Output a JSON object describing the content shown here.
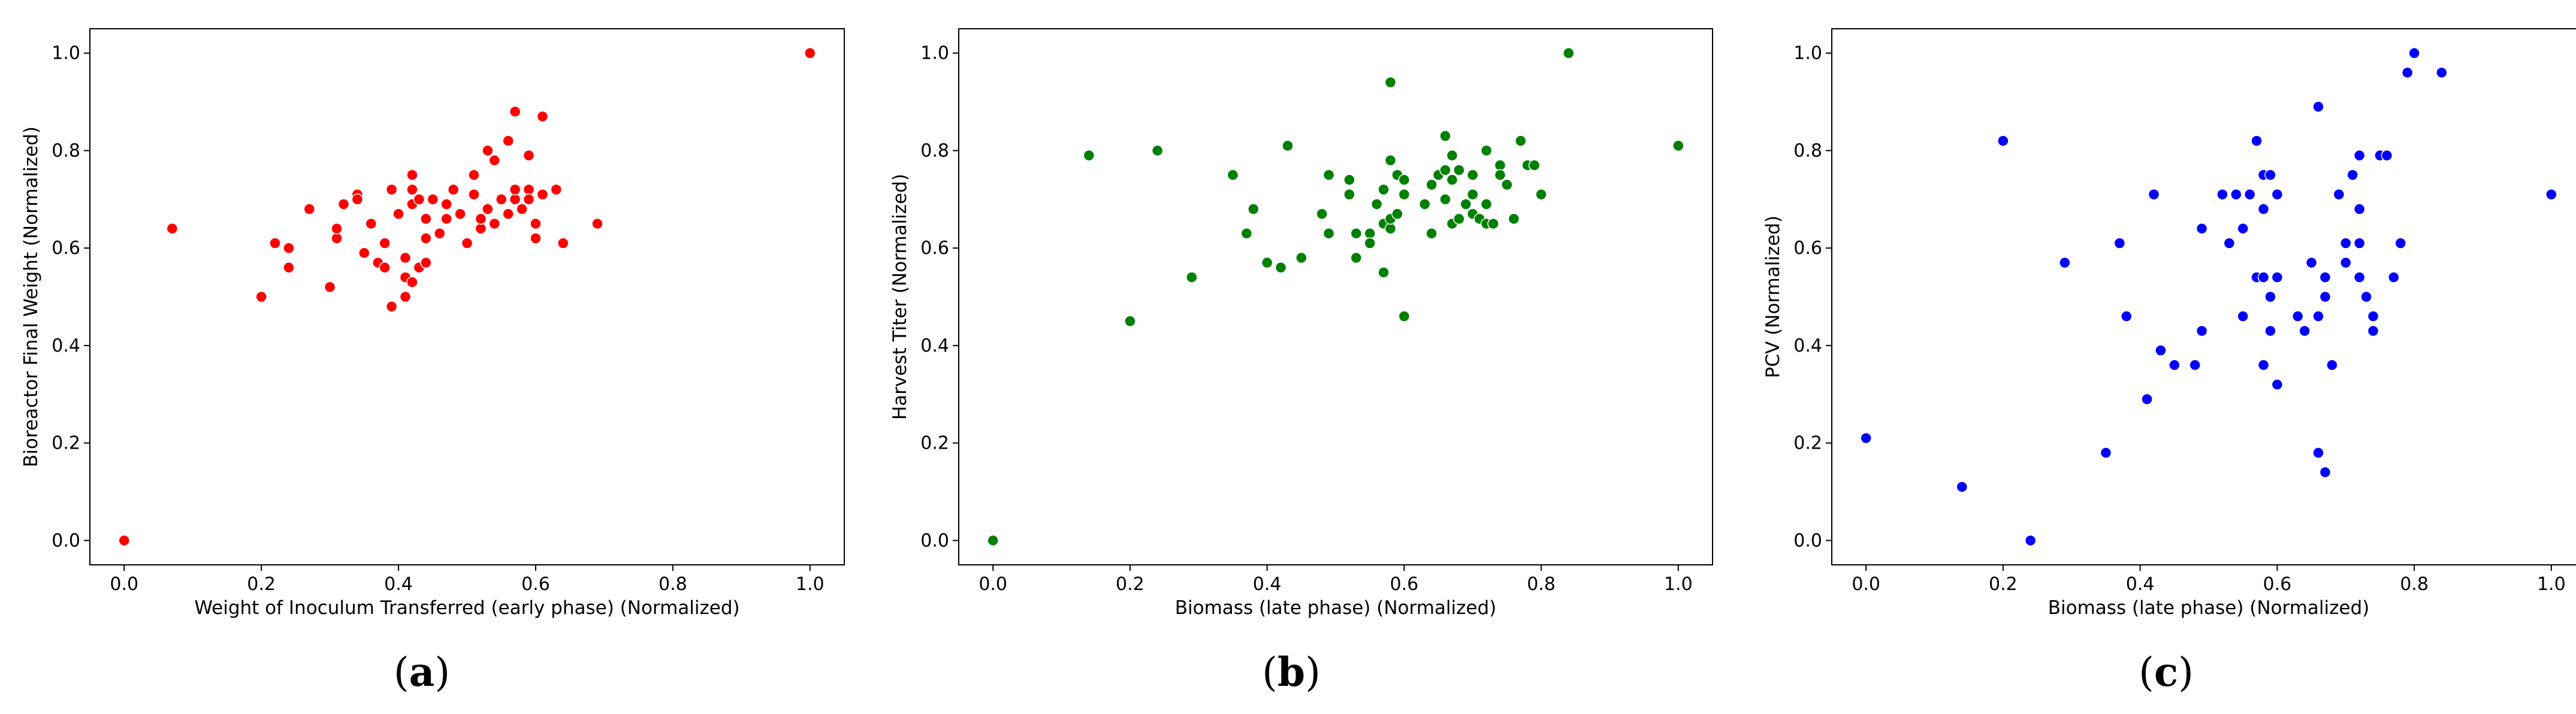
{
  "chart_data": [
    {
      "type": "scatter",
      "panel_label": "a",
      "xlabel": "Weight of Inoculum Transferred (early phase) (Normalized)",
      "ylabel": "Bioreactor Final Weight (Normalized)",
      "xlim": [
        -0.05,
        1.05
      ],
      "ylim": [
        -0.05,
        1.05
      ],
      "xticks": [
        "0.0",
        "0.2",
        "0.4",
        "0.6",
        "0.8",
        "1.0"
      ],
      "yticks": [
        "0.0",
        "0.2",
        "0.4",
        "0.6",
        "0.8",
        "1.0"
      ],
      "grid": false,
      "color": "#ff0000",
      "points": [
        [
          0.0,
          0.0
        ],
        [
          0.07,
          0.64
        ],
        [
          0.2,
          0.5
        ],
        [
          0.22,
          0.61
        ],
        [
          0.24,
          0.6
        ],
        [
          0.24,
          0.56
        ],
        [
          0.27,
          0.68
        ],
        [
          0.3,
          0.52
        ],
        [
          0.31,
          0.62
        ],
        [
          0.31,
          0.64
        ],
        [
          0.32,
          0.69
        ],
        [
          0.34,
          0.71
        ],
        [
          0.34,
          0.7
        ],
        [
          0.35,
          0.59
        ],
        [
          0.36,
          0.65
        ],
        [
          0.37,
          0.57
        ],
        [
          0.38,
          0.61
        ],
        [
          0.38,
          0.56
        ],
        [
          0.39,
          0.48
        ],
        [
          0.39,
          0.72
        ],
        [
          0.4,
          0.67
        ],
        [
          0.41,
          0.54
        ],
        [
          0.41,
          0.5
        ],
        [
          0.41,
          0.58
        ],
        [
          0.42,
          0.69
        ],
        [
          0.42,
          0.75
        ],
        [
          0.42,
          0.72
        ],
        [
          0.42,
          0.53
        ],
        [
          0.43,
          0.7
        ],
        [
          0.43,
          0.56
        ],
        [
          0.44,
          0.57
        ],
        [
          0.44,
          0.62
        ],
        [
          0.44,
          0.66
        ],
        [
          0.45,
          0.7
        ],
        [
          0.46,
          0.63
        ],
        [
          0.47,
          0.69
        ],
        [
          0.47,
          0.66
        ],
        [
          0.48,
          0.72
        ],
        [
          0.49,
          0.67
        ],
        [
          0.5,
          0.61
        ],
        [
          0.51,
          0.71
        ],
        [
          0.51,
          0.75
        ],
        [
          0.52,
          0.64
        ],
        [
          0.52,
          0.66
        ],
        [
          0.53,
          0.68
        ],
        [
          0.53,
          0.8
        ],
        [
          0.54,
          0.78
        ],
        [
          0.54,
          0.65
        ],
        [
          0.55,
          0.7
        ],
        [
          0.56,
          0.82
        ],
        [
          0.56,
          0.67
        ],
        [
          0.57,
          0.88
        ],
        [
          0.57,
          0.7
        ],
        [
          0.57,
          0.72
        ],
        [
          0.58,
          0.68
        ],
        [
          0.59,
          0.72
        ],
        [
          0.59,
          0.79
        ],
        [
          0.59,
          0.7
        ],
        [
          0.6,
          0.62
        ],
        [
          0.6,
          0.65
        ],
        [
          0.61,
          0.71
        ],
        [
          0.61,
          0.87
        ],
        [
          0.63,
          0.72
        ],
        [
          0.64,
          0.61
        ],
        [
          0.69,
          0.65
        ],
        [
          1.0,
          1.0
        ]
      ]
    },
    {
      "type": "scatter",
      "panel_label": "b",
      "xlabel": "Biomass (late phase) (Normalized)",
      "ylabel": "Harvest Titer (Normalized)",
      "xlim": [
        -0.05,
        1.05
      ],
      "ylim": [
        -0.05,
        1.05
      ],
      "xticks": [
        "0.0",
        "0.2",
        "0.4",
        "0.6",
        "0.8",
        "1.0"
      ],
      "yticks": [
        "0.0",
        "0.2",
        "0.4",
        "0.6",
        "0.8",
        "1.0"
      ],
      "grid": false,
      "color": "#008000",
      "points": [
        [
          0.0,
          0.0
        ],
        [
          0.14,
          0.79
        ],
        [
          0.2,
          0.45
        ],
        [
          0.24,
          0.8
        ],
        [
          0.29,
          0.54
        ],
        [
          0.35,
          0.75
        ],
        [
          0.37,
          0.63
        ],
        [
          0.38,
          0.68
        ],
        [
          0.4,
          0.57
        ],
        [
          0.42,
          0.56
        ],
        [
          0.43,
          0.81
        ],
        [
          0.45,
          0.58
        ],
        [
          0.48,
          0.67
        ],
        [
          0.49,
          0.75
        ],
        [
          0.49,
          0.63
        ],
        [
          0.52,
          0.71
        ],
        [
          0.52,
          0.74
        ],
        [
          0.53,
          0.63
        ],
        [
          0.53,
          0.58
        ],
        [
          0.55,
          0.63
        ],
        [
          0.55,
          0.61
        ],
        [
          0.56,
          0.69
        ],
        [
          0.57,
          0.65
        ],
        [
          0.57,
          0.55
        ],
        [
          0.57,
          0.72
        ],
        [
          0.58,
          0.78
        ],
        [
          0.58,
          0.94
        ],
        [
          0.58,
          0.64
        ],
        [
          0.58,
          0.66
        ],
        [
          0.59,
          0.67
        ],
        [
          0.59,
          0.75
        ],
        [
          0.6,
          0.74
        ],
        [
          0.6,
          0.71
        ],
        [
          0.6,
          0.46
        ],
        [
          0.63,
          0.69
        ],
        [
          0.64,
          0.73
        ],
        [
          0.64,
          0.63
        ],
        [
          0.65,
          0.75
        ],
        [
          0.66,
          0.83
        ],
        [
          0.66,
          0.76
        ],
        [
          0.66,
          0.7
        ],
        [
          0.67,
          0.79
        ],
        [
          0.67,
          0.65
        ],
        [
          0.67,
          0.74
        ],
        [
          0.68,
          0.76
        ],
        [
          0.68,
          0.66
        ],
        [
          0.69,
          0.69
        ],
        [
          0.7,
          0.71
        ],
        [
          0.7,
          0.75
        ],
        [
          0.7,
          0.67
        ],
        [
          0.71,
          0.66
        ],
        [
          0.72,
          0.65
        ],
        [
          0.72,
          0.69
        ],
        [
          0.72,
          0.8
        ],
        [
          0.73,
          0.65
        ],
        [
          0.74,
          0.77
        ],
        [
          0.74,
          0.75
        ],
        [
          0.75,
          0.73
        ],
        [
          0.76,
          0.66
        ],
        [
          0.77,
          0.82
        ],
        [
          0.78,
          0.77
        ],
        [
          0.79,
          0.77
        ],
        [
          0.8,
          0.71
        ],
        [
          0.84,
          1.0
        ],
        [
          1.0,
          0.81
        ]
      ]
    },
    {
      "type": "scatter",
      "panel_label": "c",
      "xlabel": "Biomass (late phase) (Normalized)",
      "ylabel": "PCV (Normalized)",
      "xlim": [
        -0.05,
        1.05
      ],
      "ylim": [
        -0.05,
        1.05
      ],
      "xticks": [
        "0.0",
        "0.2",
        "0.4",
        "0.6",
        "0.8",
        "1.0"
      ],
      "yticks": [
        "0.0",
        "0.2",
        "0.4",
        "0.6",
        "0.8",
        "1.0"
      ],
      "grid": false,
      "color": "#0000ff",
      "points": [
        [
          0.0,
          0.21
        ],
        [
          0.14,
          0.11
        ],
        [
          0.2,
          0.82
        ],
        [
          0.24,
          0.0
        ],
        [
          0.29,
          0.57
        ],
        [
          0.35,
          0.18
        ],
        [
          0.37,
          0.61
        ],
        [
          0.38,
          0.46
        ],
        [
          0.41,
          0.29
        ],
        [
          0.42,
          0.71
        ],
        [
          0.43,
          0.39
        ],
        [
          0.45,
          0.36
        ],
        [
          0.48,
          0.36
        ],
        [
          0.49,
          0.64
        ],
        [
          0.49,
          0.43
        ],
        [
          0.52,
          0.71
        ],
        [
          0.53,
          0.61
        ],
        [
          0.54,
          0.71
        ],
        [
          0.55,
          0.46
        ],
        [
          0.55,
          0.64
        ],
        [
          0.56,
          0.71
        ],
        [
          0.57,
          0.82
        ],
        [
          0.57,
          0.54
        ],
        [
          0.58,
          0.75
        ],
        [
          0.58,
          0.54
        ],
        [
          0.58,
          0.36
        ],
        [
          0.58,
          0.68
        ],
        [
          0.59,
          0.5
        ],
        [
          0.59,
          0.43
        ],
        [
          0.59,
          0.75
        ],
        [
          0.6,
          0.71
        ],
        [
          0.6,
          0.54
        ],
        [
          0.6,
          0.32
        ],
        [
          0.63,
          0.46
        ],
        [
          0.64,
          0.43
        ],
        [
          0.65,
          0.57
        ],
        [
          0.66,
          0.89
        ],
        [
          0.66,
          0.46
        ],
        [
          0.66,
          0.18
        ],
        [
          0.67,
          0.14
        ],
        [
          0.67,
          0.54
        ],
        [
          0.67,
          0.5
        ],
        [
          0.68,
          0.36
        ],
        [
          0.69,
          0.71
        ],
        [
          0.7,
          0.61
        ],
        [
          0.7,
          0.57
        ],
        [
          0.71,
          0.75
        ],
        [
          0.72,
          0.54
        ],
        [
          0.72,
          0.61
        ],
        [
          0.72,
          0.68
        ],
        [
          0.72,
          0.79
        ],
        [
          0.73,
          0.5
        ],
        [
          0.74,
          0.46
        ],
        [
          0.74,
          0.43
        ],
        [
          0.75,
          0.79
        ],
        [
          0.76,
          0.79
        ],
        [
          0.77,
          0.54
        ],
        [
          0.78,
          0.61
        ],
        [
          0.79,
          0.96
        ],
        [
          0.8,
          1.0
        ],
        [
          0.84,
          0.96
        ],
        [
          1.0,
          0.71
        ]
      ]
    }
  ]
}
